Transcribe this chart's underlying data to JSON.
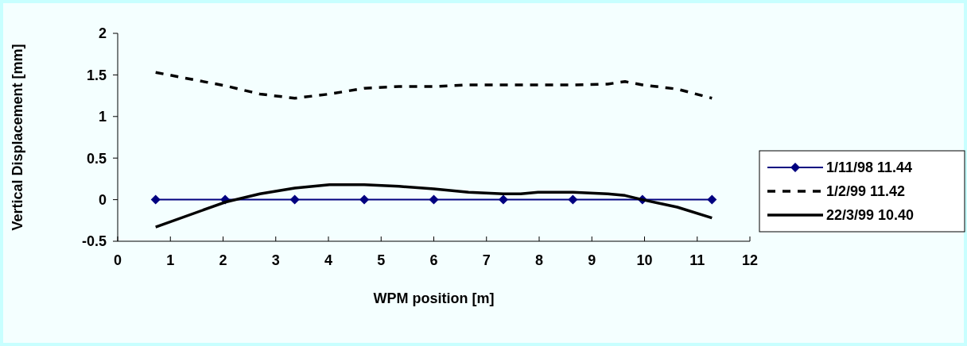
{
  "chart_data": {
    "type": "line",
    "xlabel": "WPM position [m]",
    "ylabel": "Vertical Displacement [mm]",
    "xlim": [
      0,
      12
    ],
    "xticks": [
      0,
      1,
      2,
      3,
      4,
      5,
      6,
      7,
      8,
      9,
      10,
      11,
      12
    ],
    "ylim": [
      -0.5,
      2
    ],
    "yticks": [
      -0.5,
      0,
      0.5,
      1,
      1.5,
      2
    ],
    "grid": false,
    "legend": "right",
    "series": [
      {
        "name": "1/11/98 11.44",
        "color": "#000080",
        "marker": "diamond",
        "line_style": "solid",
        "x": [
          0.72,
          2.04,
          3.36,
          4.68,
          6.0,
          7.32,
          8.64,
          9.96,
          11.28
        ],
        "values": [
          0,
          0,
          0,
          0,
          0,
          0,
          0,
          0,
          0
        ]
      },
      {
        "name": "1/2/99 11.42",
        "color": "#000000",
        "marker": "none",
        "line_style": "dashed",
        "x": [
          0.72,
          2.04,
          2.7,
          3.36,
          4.02,
          4.68,
          5.34,
          6.0,
          6.66,
          7.32,
          7.98,
          8.64,
          9.3,
          9.63,
          9.96,
          10.62,
          11.28
        ],
        "values": [
          1.53,
          1.37,
          1.27,
          1.22,
          1.27,
          1.34,
          1.36,
          1.36,
          1.38,
          1.38,
          1.38,
          1.38,
          1.39,
          1.42,
          1.38,
          1.33,
          1.22
        ]
      },
      {
        "name": "22/3/99 10.40",
        "color": "#000000",
        "marker": "none",
        "line_style": "solid",
        "x": [
          0.72,
          2.04,
          2.7,
          3.36,
          4.02,
          4.68,
          5.34,
          6.0,
          6.66,
          7.32,
          7.65,
          7.98,
          8.64,
          9.3,
          9.63,
          9.96,
          10.62,
          11.28
        ],
        "values": [
          -0.33,
          -0.03,
          0.07,
          0.14,
          0.18,
          0.18,
          0.16,
          0.13,
          0.09,
          0.07,
          0.07,
          0.09,
          0.09,
          0.07,
          0.05,
          0.0,
          -0.09,
          -0.22
        ]
      }
    ]
  }
}
